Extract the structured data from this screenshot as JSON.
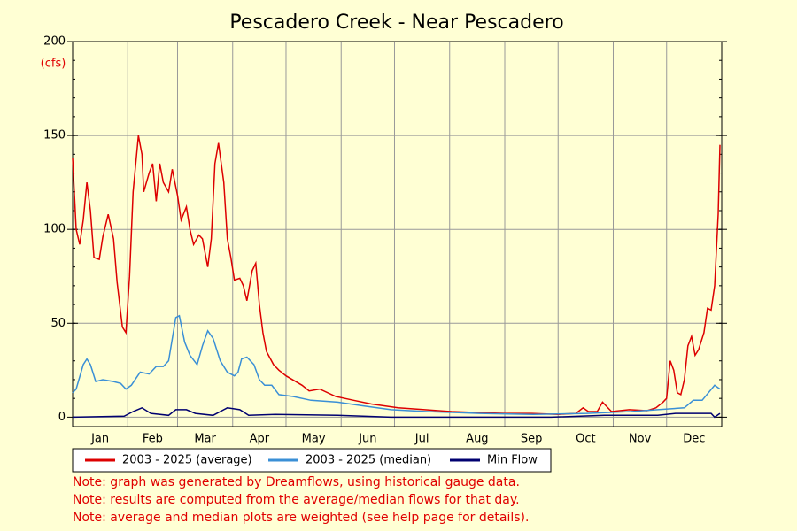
{
  "chart_data": {
    "type": "line",
    "title": "Pescadero Creek - Near Pescadero",
    "y_unit": "(cfs)",
    "xlim": [
      1,
      366
    ],
    "xticks": [
      {
        "value": 1,
        "label": "Jan"
      },
      {
        "value": 32,
        "label": "Feb"
      },
      {
        "value": 60,
        "label": "Mar"
      },
      {
        "value": 91,
        "label": "Apr"
      },
      {
        "value": 121,
        "label": "May"
      },
      {
        "value": 152,
        "label": "Jun"
      },
      {
        "value": 182,
        "label": "Jul"
      },
      {
        "value": 213,
        "label": "Aug"
      },
      {
        "value": 244,
        "label": "Sep"
      },
      {
        "value": 274,
        "label": "Oct"
      },
      {
        "value": 305,
        "label": "Nov"
      },
      {
        "value": 335,
        "label": "Dec"
      }
    ],
    "ylim": [
      -5,
      200
    ],
    "yticks": [
      0,
      50,
      100,
      150,
      200
    ],
    "grid": true,
    "series": [
      {
        "name": "2003 - 2025 (average)",
        "color": "#dd0000",
        "x": [
          1,
          3,
          5,
          7,
          9,
          11,
          13,
          16,
          18,
          21,
          24,
          26,
          29,
          31,
          33,
          35,
          38,
          40,
          41,
          44,
          46,
          48,
          50,
          52,
          55,
          57,
          60,
          62,
          65,
          67,
          69,
          72,
          74,
          77,
          79,
          81,
          83,
          86,
          88,
          90,
          92,
          95,
          97,
          99,
          102,
          104,
          106,
          108,
          110,
          114,
          117,
          121,
          130,
          134,
          140,
          149,
          159,
          169,
          184,
          199,
          214,
          229,
          244,
          259,
          274,
          284,
          288,
          291,
          296,
          299,
          304,
          314,
          324,
          329,
          333,
          335,
          337,
          339,
          341,
          343,
          345,
          347,
          349,
          351,
          353,
          356,
          358,
          360,
          362,
          364,
          365
        ],
        "values": [
          138,
          100,
          92,
          105,
          125,
          110,
          85,
          84,
          96,
          108,
          95,
          72,
          48,
          45,
          75,
          120,
          150,
          140,
          120,
          130,
          135,
          115,
          135,
          125,
          120,
          132,
          118,
          105,
          112,
          100,
          92,
          97,
          95,
          80,
          95,
          135,
          146,
          125,
          95,
          85,
          73,
          74,
          70,
          62,
          78,
          82,
          60,
          45,
          35,
          28,
          25,
          22,
          17,
          14,
          15,
          11,
          9,
          7,
          5,
          4,
          3,
          2.5,
          2,
          2,
          1.5,
          2,
          5,
          3,
          3,
          8,
          3,
          4,
          3.5,
          5,
          8,
          10,
          30,
          25,
          13,
          12,
          20,
          38,
          43,
          33,
          36,
          45,
          58,
          57,
          70,
          108,
          145
        ]
      },
      {
        "name": "2003 - 2025 (median)",
        "color": "#3a8fd6",
        "x": [
          1,
          3,
          7,
          9,
          11,
          14,
          18,
          24,
          28,
          31,
          34,
          39,
          44,
          48,
          52,
          55,
          59,
          61,
          64,
          67,
          71,
          74,
          77,
          80,
          84,
          88,
          92,
          94,
          96,
          99,
          103,
          106,
          109,
          113,
          117,
          125,
          135,
          150,
          165,
          180,
          200,
          230,
          260,
          290,
          315,
          330,
          345,
          350,
          355,
          362,
          365
        ],
        "values": [
          13,
          15,
          28,
          31,
          28,
          19,
          20,
          19,
          18,
          15,
          17,
          24,
          23,
          27,
          27,
          30,
          53,
          54,
          40,
          33,
          28,
          38,
          46,
          42,
          30,
          24,
          22,
          24,
          31,
          32,
          28,
          20,
          17,
          17,
          12,
          11,
          9,
          8,
          6,
          4,
          3,
          2,
          1.5,
          2,
          3,
          4,
          5,
          9,
          9,
          17,
          15
        ]
      },
      {
        "name": "Min Flow",
        "color": "#000070",
        "x": [
          1,
          30,
          35,
          40,
          45,
          55,
          59,
          65,
          70,
          80,
          88,
          95,
          100,
          115,
          150,
          180,
          270,
          300,
          330,
          340,
          360,
          362,
          365
        ],
        "values": [
          0,
          0.5,
          3,
          5,
          2,
          1,
          4,
          4,
          2,
          1,
          5,
          4,
          1,
          1.5,
          1,
          0,
          0,
          1,
          1,
          2,
          2,
          0,
          2
        ]
      }
    ],
    "notes": [
      "Note: graph was generated by Dreamflows, using historical gauge data.",
      "Note: results are computed from the average/median flows for that day.",
      "Note: average and median plots are weighted (see help page for details)."
    ]
  }
}
